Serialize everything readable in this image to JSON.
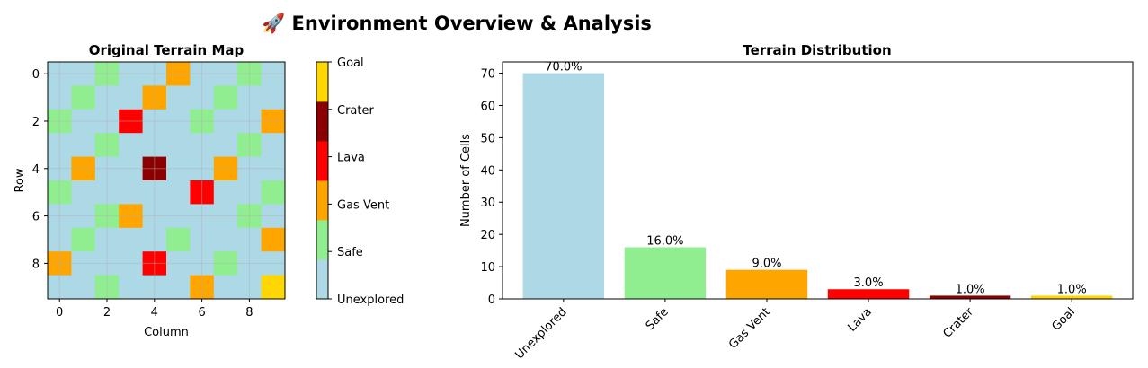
{
  "suptitle": "🚀 Environment Overview & Analysis",
  "chart_data": [
    {
      "type": "heatmap",
      "title": "Original Terrain Map",
      "xlabel": "Column",
      "ylabel": "Row",
      "x_ticks": [
        "0",
        "2",
        "4",
        "6",
        "8"
      ],
      "y_ticks": [
        "0",
        "2",
        "4",
        "6",
        "8"
      ],
      "color_categories": [
        "Unexplored",
        "Safe",
        "Gas Vent",
        "Lava",
        "Crater",
        "Goal"
      ],
      "colors": [
        "#add8e6",
        "#90ee90",
        "#ffa500",
        "#ff0000",
        "#8b0000",
        "#ffd700"
      ],
      "grid": true,
      "colorbar": "right",
      "matrix": [
        [
          0,
          0,
          1,
          0,
          0,
          2,
          0,
          0,
          1,
          0
        ],
        [
          0,
          1,
          0,
          0,
          2,
          0,
          0,
          1,
          0,
          0
        ],
        [
          1,
          0,
          0,
          3,
          0,
          0,
          1,
          0,
          0,
          2
        ],
        [
          0,
          0,
          1,
          0,
          0,
          0,
          0,
          0,
          1,
          0
        ],
        [
          0,
          2,
          0,
          0,
          4,
          0,
          0,
          2,
          0,
          0
        ],
        [
          1,
          0,
          0,
          0,
          0,
          0,
          3,
          0,
          0,
          1
        ],
        [
          0,
          0,
          1,
          2,
          0,
          0,
          0,
          0,
          1,
          0
        ],
        [
          0,
          1,
          0,
          0,
          0,
          1,
          0,
          0,
          0,
          2
        ],
        [
          2,
          0,
          0,
          0,
          3,
          0,
          0,
          1,
          0,
          0
        ],
        [
          0,
          0,
          1,
          0,
          0,
          0,
          2,
          0,
          0,
          5
        ]
      ]
    },
    {
      "type": "bar",
      "title": "Terrain Distribution",
      "xlabel": "",
      "ylabel": "Number of Cells",
      "categories": [
        "Unexplored",
        "Safe",
        "Gas Vent",
        "Lava",
        "Crater",
        "Goal"
      ],
      "values": [
        70,
        16,
        9,
        3,
        1,
        1
      ],
      "data_labels": [
        "70.0%",
        "16.0%",
        "9.0%",
        "3.0%",
        "1.0%",
        "1.0%"
      ],
      "colors": [
        "#add8e6",
        "#90ee90",
        "#ffa500",
        "#ff0000",
        "#8b0000",
        "#ffd700"
      ],
      "y_ticks": [
        "0",
        "10",
        "20",
        "30",
        "40",
        "50",
        "60",
        "70"
      ],
      "y_tick_values": [
        0,
        10,
        20,
        30,
        40,
        50,
        60,
        70
      ],
      "ylim": [
        0,
        73.5
      ],
      "x_tick_rotation": "45 degrees",
      "grid": false
    }
  ]
}
